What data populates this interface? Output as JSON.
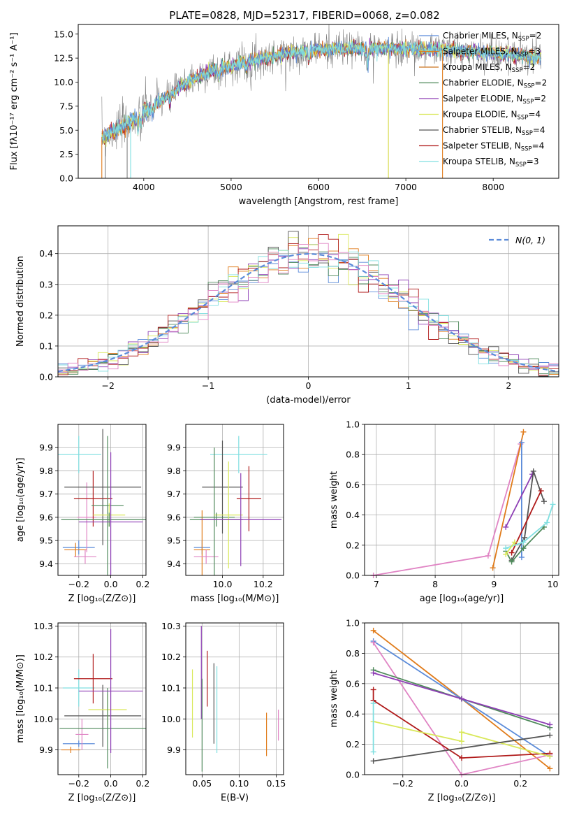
{
  "colors": {
    "blue": "#5b8bd9",
    "orange": "#e07b1a",
    "brown_orange": "#c9731e",
    "green": "#4f8a5b",
    "purple": "#8e3fb5",
    "yellow": "#d9e85a",
    "dark": "#555555",
    "red": "#b01a1a",
    "cyan": "#7fdfe0",
    "pink": "#e084c4",
    "gray": "#808080",
    "grid": "#b0b0b0"
  },
  "chart_data": [
    {
      "id": "spectrum",
      "type": "line",
      "title": "PLATE=0828, MJD=52317, FIBERID=0068, z=0.082",
      "xlabel": "wavelength [Angstrom, rest frame]",
      "ylabel": "Flux [fλ10⁻¹⁷ erg cm⁻² s⁻¹ A⁻¹]",
      "xlim": [
        3250,
        8750
      ],
      "ylim": [
        0,
        16
      ],
      "xticks": [
        "4000",
        "5000",
        "6000",
        "7000",
        "8000"
      ],
      "yticks": [
        "0.0",
        "2.5",
        "5.0",
        "7.5",
        "10.0",
        "12.5",
        "15.0"
      ],
      "grid": false,
      "legend_position": "top-right",
      "legend": [
        {
          "name": "Chabrier MILES, N",
          "sub": "SSP",
          "suffix": "=2",
          "color": "#5b8bd9"
        },
        {
          "name": "Salpeter MILES, N",
          "sub": "SSP",
          "suffix": "=3",
          "color": "#e07b1a"
        },
        {
          "name": "Kroupa MILES, N",
          "sub": "SSP",
          "suffix": "=2",
          "color": "#c9731e"
        },
        {
          "name": "Chabrier ELODIE, N",
          "sub": "SSP",
          "suffix": "=2",
          "color": "#4f8a5b"
        },
        {
          "name": "Salpeter ELODIE, N",
          "sub": "SSP",
          "suffix": "=2",
          "color": "#8e3fb5"
        },
        {
          "name": "Kroupa ELODIE, N",
          "sub": "SSP",
          "suffix": "=4",
          "color": "#d9e85a"
        },
        {
          "name": "Chabrier STELIB, N",
          "sub": "SSP",
          "suffix": "=4",
          "color": "#555555"
        },
        {
          "name": "Salpeter STELIB, N",
          "sub": "SSP",
          "suffix": "=4",
          "color": "#b01a1a"
        },
        {
          "name": "Kroupa STELIB, N",
          "sub": "SSP",
          "suffix": "=3",
          "color": "#7fdfe0"
        }
      ],
      "continuum": {
        "x": [
          3500,
          3800,
          4000,
          4200,
          4500,
          4800,
          5200,
          5600,
          6000,
          6500,
          7000,
          7400,
          7600,
          8000,
          8300,
          8550
        ],
        "y": [
          4.2,
          5.6,
          6.9,
          8.1,
          10.0,
          11.3,
          12.2,
          12.9,
          13.4,
          13.5,
          13.5,
          13.4,
          13.2,
          13.0,
          12.8,
          12.6
        ]
      },
      "drops": [
        {
          "x": 3520,
          "color": "#e07b1a"
        },
        {
          "x": 3560,
          "color": "#808080"
        },
        {
          "x": 3810,
          "color": "#808080"
        },
        {
          "x": 3850,
          "color": "#7fdfe0"
        },
        {
          "x": 6800,
          "color": "#e07b1a"
        },
        {
          "x": 6800,
          "color": "#d9e85a"
        },
        {
          "x": 7420,
          "color": "#e07b1a"
        }
      ]
    },
    {
      "id": "residuals",
      "type": "histogram",
      "xlabel": "(data-model)/error",
      "ylabel": "Normed distribution",
      "xlim": [
        -2.5,
        2.5
      ],
      "ylim": [
        0,
        0.49
      ],
      "xticks": [
        "−2",
        "−1",
        "0",
        "1",
        "2"
      ],
      "yticks": [
        "0.0",
        "0.1",
        "0.2",
        "0.3",
        "0.4"
      ],
      "grid": true,
      "legend_position": "top-right",
      "legend_label": "N(0, 1)",
      "bin_width": 0.1,
      "bin_start": -2.5,
      "reference": {
        "type": "normal",
        "mean": 0,
        "sigma": 1,
        "color": "#5b8bd9"
      }
    },
    {
      "id": "age_vs_Z",
      "type": "errorbar",
      "xlabel": "Z [log₁₀(Z/Z⊙)]",
      "ylabel": "age  [log₁₀(age/yr)]",
      "xlim": [
        -0.33,
        0.22
      ],
      "ylim": [
        9.35,
        10.0
      ],
      "xticks": [
        "−0.2",
        "0.0",
        "0.2"
      ],
      "yticks": [
        "9.4",
        "9.5",
        "9.6",
        "9.7",
        "9.8",
        "9.9"
      ],
      "grid": true,
      "points": [
        {
          "x": -0.2,
          "xerr": 0.14,
          "y": 9.87,
          "yerr": 0.08,
          "color": "#7fdfe0"
        },
        {
          "x": -0.2,
          "xerr": 0.1,
          "y": 9.47,
          "yerr": 0.03,
          "color": "#5b8bd9"
        },
        {
          "x": -0.22,
          "xerr": 0.07,
          "y": 9.46,
          "yerr": 0.03,
          "color": "#e07b1a"
        },
        {
          "x": -0.16,
          "xerr": 0.07,
          "y": 9.43,
          "yerr": 0.03,
          "color": "#e084c4"
        },
        {
          "x": -0.15,
          "xerr": 0.06,
          "y": 9.6,
          "yerr": 0.15,
          "color": "#e084c4"
        },
        {
          "x": -0.11,
          "xerr": 0.12,
          "y": 9.68,
          "yerr": 0.12,
          "color": "#b01a1a"
        },
        {
          "x": -0.05,
          "xerr": 0.24,
          "y": 9.73,
          "yerr": 0.25,
          "color": "#555555"
        },
        {
          "x": -0.02,
          "xerr": 0.1,
          "y": 9.65,
          "yerr": 0.3,
          "color": "#4f8a5b"
        },
        {
          "x": -0.01,
          "xerr": 0.1,
          "y": 9.61,
          "yerr": 0.05,
          "color": "#d9e85a"
        },
        {
          "x": -0.01,
          "xerr": 0.3,
          "y": 9.59,
          "yerr": 0.03,
          "color": "#4f8a5b"
        },
        {
          "x": 0.0,
          "xerr": 0.2,
          "y": 9.58,
          "yerr": 0.3,
          "color": "#8e3fb5"
        }
      ]
    },
    {
      "id": "age_vs_mass",
      "type": "errorbar",
      "xlabel": "mass [log₁₀(M/M⊙)]",
      "ylabel": "",
      "xlim": [
        9.82,
        10.3
      ],
      "ylim": [
        9.35,
        10.0
      ],
      "xticks": [
        "10.0",
        "10.2"
      ],
      "yticks": [
        "9.4",
        "9.5",
        "9.6",
        "9.7",
        "9.8",
        "9.9"
      ],
      "grid": true,
      "points": [
        {
          "x": 10.08,
          "xerr": 0.14,
          "y": 9.87,
          "yerr": 0.08,
          "color": "#7fdfe0"
        },
        {
          "x": 9.9,
          "xerr": 0.04,
          "y": 9.47,
          "yerr": 0.03,
          "color": "#5b8bd9"
        },
        {
          "x": 9.9,
          "xerr": 0.04,
          "y": 9.46,
          "yerr": 0.17,
          "color": "#e07b1a"
        },
        {
          "x": 9.92,
          "xerr": 0.06,
          "y": 9.43,
          "yerr": 0.03,
          "color": "#e084c4"
        },
        {
          "x": 10.13,
          "xerr": 0.06,
          "y": 9.68,
          "yerr": 0.14,
          "color": "#b01a1a"
        },
        {
          "x": 10.0,
          "xerr": 0.1,
          "y": 9.73,
          "yerr": 0.2,
          "color": "#555555"
        },
        {
          "x": 9.96,
          "xerr": 0.1,
          "y": 9.6,
          "yerr": 0.3,
          "color": "#4f8a5b"
        },
        {
          "x": 10.03,
          "xerr": 0.07,
          "y": 9.61,
          "yerr": 0.23,
          "color": "#d9e85a"
        },
        {
          "x": 9.97,
          "xerr": 0.13,
          "y": 9.59,
          "yerr": 0.03,
          "color": "#4f8a5b"
        },
        {
          "x": 10.09,
          "xerr": 0.2,
          "y": 9.59,
          "yerr": 0.2,
          "color": "#8e3fb5"
        }
      ]
    },
    {
      "id": "weight_vs_age",
      "type": "line",
      "xlabel": "age  [log₁₀(age/yr)]",
      "ylabel": "mass weight",
      "xlim": [
        6.8,
        10.1
      ],
      "ylim": [
        0,
        1
      ],
      "xticks": [
        "7",
        "8",
        "9",
        "10"
      ],
      "yticks": [
        "0.0",
        "0.2",
        "0.4",
        "0.6",
        "0.8",
        "1.0"
      ],
      "grid": true,
      "series": [
        {
          "color": "#e084c4",
          "x": [
            6.95,
            8.9,
            9.45
          ],
          "y": [
            0.0,
            0.13,
            0.87
          ]
        },
        {
          "color": "#e07b1a",
          "x": [
            8.98,
            9.5
          ],
          "y": [
            0.05,
            0.95
          ]
        },
        {
          "color": "#5b8bd9",
          "x": [
            9.47,
            9.47
          ],
          "y": [
            0.12,
            0.88
          ]
        },
        {
          "color": "#8e3fb5",
          "x": [
            9.2,
            9.65
          ],
          "y": [
            0.32,
            0.67
          ]
        },
        {
          "color": "#555555",
          "x": [
            9.3,
            9.52,
            9.67,
            9.85
          ],
          "y": [
            0.1,
            0.25,
            0.69,
            0.49
          ]
        },
        {
          "color": "#b01a1a",
          "x": [
            9.3,
            9.8
          ],
          "y": [
            0.15,
            0.56
          ]
        },
        {
          "color": "#4f8a5b",
          "x": [
            9.2,
            9.3,
            9.5,
            9.85
          ],
          "y": [
            0.16,
            0.09,
            0.18,
            0.32
          ]
        },
        {
          "color": "#7fdfe0",
          "x": [
            9.2,
            9.5,
            9.9,
            10.0
          ],
          "y": [
            0.18,
            0.22,
            0.35,
            0.47
          ]
        },
        {
          "color": "#d9e85a",
          "x": [
            9.2,
            9.35
          ],
          "y": [
            0.14,
            0.22
          ]
        }
      ]
    },
    {
      "id": "mass_vs_Z",
      "type": "errorbar",
      "xlabel": "Z [log₁₀(Z/Z⊙)]",
      "ylabel": "mass [log₁₀(M/M⊙)]",
      "xlim": [
        -0.33,
        0.22
      ],
      "ylim": [
        9.82,
        10.31
      ],
      "xticks": [
        "−0.2",
        "0.0",
        "0.2"
      ],
      "yticks": [
        "9.9",
        "10.0",
        "10.1",
        "10.2",
        "10.3"
      ],
      "grid": true,
      "points": [
        {
          "x": -0.2,
          "xerr": 0.1,
          "y": 10.1,
          "yerr": 0.06,
          "color": "#7fdfe0"
        },
        {
          "x": -0.2,
          "xerr": 0.1,
          "y": 9.92,
          "yerr": 0.01,
          "color": "#5b8bd9"
        },
        {
          "x": -0.25,
          "xerr": 0.06,
          "y": 9.9,
          "yerr": 0.01,
          "color": "#e07b1a"
        },
        {
          "x": -0.18,
          "xerr": 0.04,
          "y": 9.95,
          "yerr": 0.05,
          "color": "#e084c4"
        },
        {
          "x": -0.11,
          "xerr": 0.12,
          "y": 10.13,
          "yerr": 0.08,
          "color": "#b01a1a"
        },
        {
          "x": -0.05,
          "xerr": 0.24,
          "y": 10.01,
          "yerr": 0.1,
          "color": "#555555"
        },
        {
          "x": -0.02,
          "xerr": 0.12,
          "y": 10.03,
          "yerr": 0.05,
          "color": "#d9e85a"
        },
        {
          "x": -0.02,
          "xerr": 0.3,
          "y": 9.97,
          "yerr": 0.13,
          "color": "#4f8a5b"
        },
        {
          "x": 0.0,
          "xerr": 0.2,
          "y": 10.09,
          "yerr": 0.2,
          "color": "#8e3fb5"
        }
      ]
    },
    {
      "id": "mass_vs_ebv",
      "type": "errorbar",
      "xlabel": "E(B-V)",
      "ylabel": "",
      "xlim": [
        0.028,
        0.16
      ],
      "ylim": [
        9.82,
        10.31
      ],
      "xticks": [
        "0.05",
        "0.10",
        "0.15"
      ],
      "yticks": [
        "9.9",
        "10.0",
        "10.1",
        "10.2",
        "10.3"
      ],
      "grid": true,
      "points": [
        {
          "x": 0.037,
          "y": 10.05,
          "yerr": 0.11,
          "color": "#d9e85a"
        },
        {
          "x": 0.049,
          "y": 10.15,
          "yerr": 0.15,
          "color": "#8e3fb5"
        },
        {
          "x": 0.05,
          "y": 9.98,
          "yerr": 0.15,
          "color": "#4f8a5b"
        },
        {
          "x": 0.057,
          "y": 10.13,
          "yerr": 0.09,
          "color": "#b01a1a"
        },
        {
          "x": 0.066,
          "y": 10.05,
          "yerr": 0.13,
          "color": "#555555"
        },
        {
          "x": 0.07,
          "y": 10.03,
          "yerr": 0.14,
          "color": "#7fdfe0"
        },
        {
          "x": 0.137,
          "y": 9.95,
          "yerr": 0.07,
          "color": "#e07b1a"
        },
        {
          "x": 0.153,
          "y": 9.98,
          "yerr": 0.05,
          "color": "#e084c4"
        }
      ]
    },
    {
      "id": "weight_vs_Z",
      "type": "line",
      "xlabel": "Z [log₁₀(Z/Z⊙)]",
      "ylabel": "mass weight",
      "xlim": [
        -0.33,
        0.33
      ],
      "ylim": [
        0,
        1
      ],
      "xticks": [
        "−0.2",
        "0.0",
        "0.2"
      ],
      "yticks": [
        "0.0",
        "0.2",
        "0.4",
        "0.6",
        "0.8",
        "1.0"
      ],
      "grid": true,
      "series": [
        {
          "color": "#e07b1a",
          "x": [
            -0.3,
            0.0,
            0.3
          ],
          "y": [
            0.95,
            0.5,
            0.04
          ]
        },
        {
          "color": "#5b8bd9",
          "x": [
            -0.3,
            0.0,
            0.3
          ],
          "y": [
            0.88,
            0.5,
            0.12
          ]
        },
        {
          "color": "#e084c4",
          "x": [
            -0.3,
            0.0,
            0.3
          ],
          "y": [
            0.87,
            0.0,
            0.13
          ]
        },
        {
          "color": "#4f8a5b",
          "x": [
            -0.3,
            0.0,
            0.3
          ],
          "y": [
            0.69,
            0.5,
            0.31
          ]
        },
        {
          "color": "#8e3fb5",
          "x": [
            -0.3,
            0.0,
            0.3
          ],
          "y": [
            0.67,
            0.5,
            0.33
          ]
        },
        {
          "color": "#b01a1a",
          "x": [
            -0.3,
            -0.3,
            0.0,
            0.3
          ],
          "y": [
            0.56,
            0.49,
            0.11,
            0.14
          ]
        },
        {
          "color": "#d9e85a",
          "x": [
            -0.3,
            0.0,
            0.0,
            0.3
          ],
          "y": [
            0.35,
            0.22,
            0.28,
            0.12
          ]
        },
        {
          "color": "#555555",
          "x": [
            -0.3,
            0.3
          ],
          "y": [
            0.09,
            0.26
          ]
        },
        {
          "color": "#7fdfe0",
          "x": [
            -0.3,
            -0.3
          ],
          "y": [
            0.15,
            0.47
          ]
        }
      ]
    }
  ]
}
